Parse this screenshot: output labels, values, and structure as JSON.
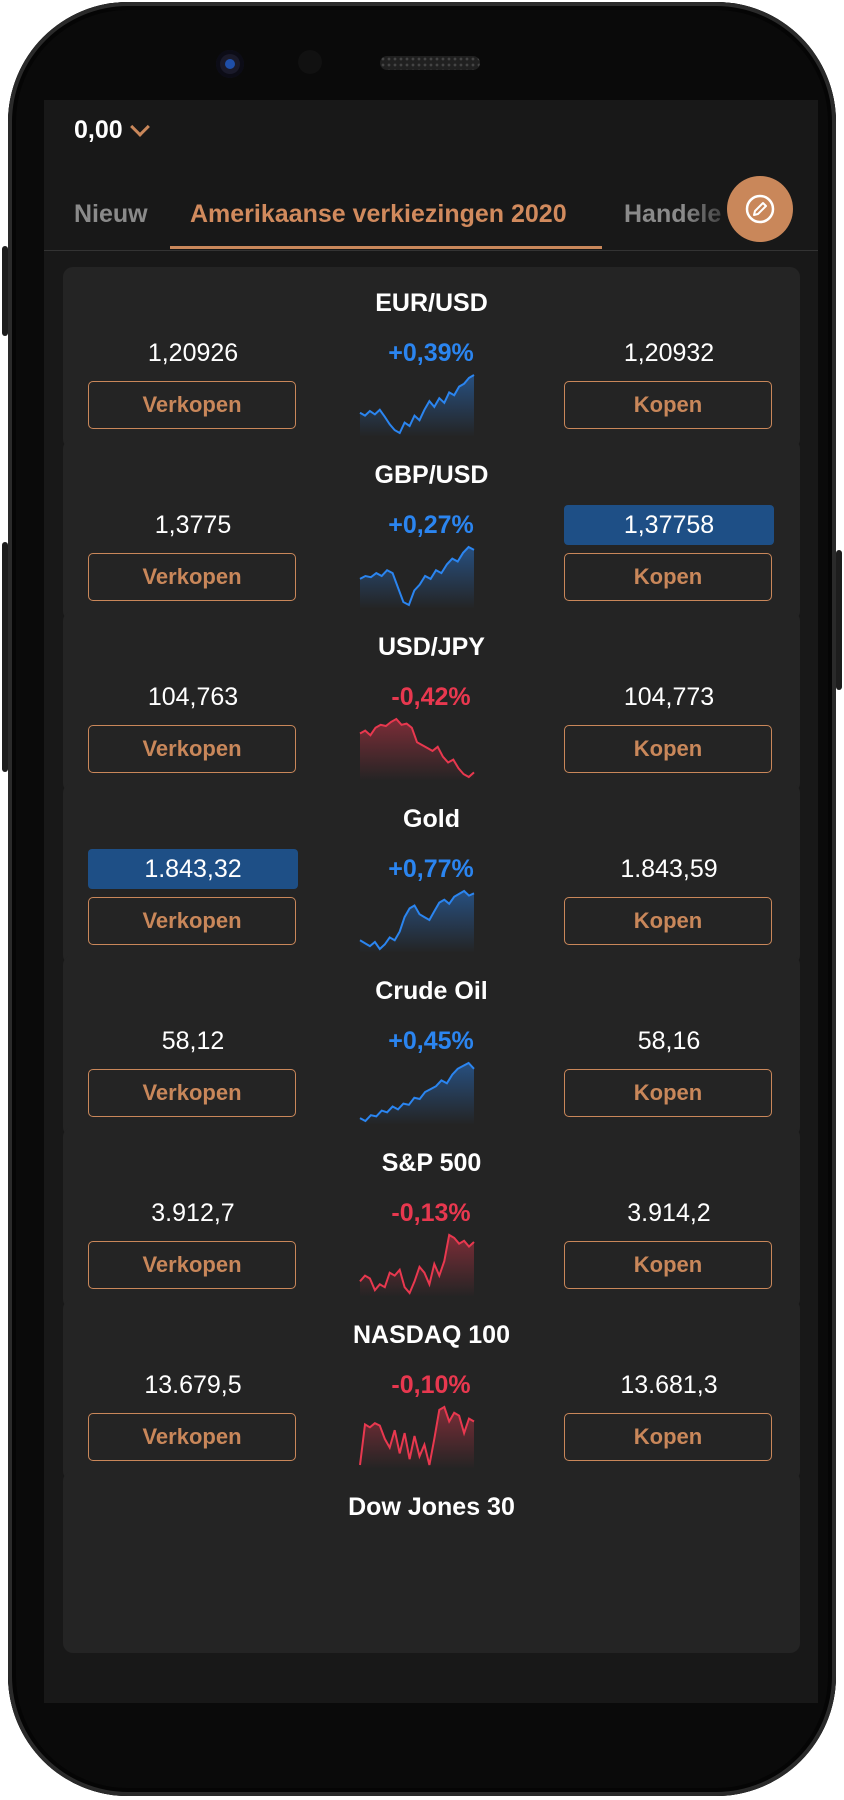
{
  "header": {
    "balance": "0,00"
  },
  "tabs": [
    {
      "label": "Nieuw"
    },
    {
      "label": "Amerikaanse verkiezingen 2020"
    },
    {
      "label": "Handele"
    }
  ],
  "colors": {
    "accent": "#c9875a",
    "up": "#2b85f0",
    "down": "#e8384f",
    "highlight": "#1e4f86"
  },
  "instruments": [
    {
      "name": "EUR/USD",
      "sell": "1,20926",
      "buy": "1,20932",
      "change": "+0,39%",
      "dir": "up",
      "highlight": "",
      "sell_label": "Verkopen",
      "buy_label": "Kopen",
      "spark": [
        0.35,
        0.3,
        0.38,
        0.32,
        0.4,
        0.28,
        0.15,
        0.05,
        0.0,
        0.18,
        0.12,
        0.3,
        0.22,
        0.4,
        0.55,
        0.45,
        0.6,
        0.52,
        0.7,
        0.65,
        0.8,
        0.85,
        0.95,
        1.0
      ]
    },
    {
      "name": "GBP/USD",
      "sell": "1,3775",
      "buy": "1,37758",
      "change": "+0,27%",
      "dir": "up",
      "highlight": "buy",
      "sell_label": "Verkopen",
      "buy_label": "Kopen",
      "spark": [
        0.45,
        0.5,
        0.48,
        0.55,
        0.5,
        0.6,
        0.55,
        0.3,
        0.05,
        0.0,
        0.25,
        0.35,
        0.5,
        0.45,
        0.6,
        0.55,
        0.7,
        0.8,
        0.75,
        0.9,
        1.0,
        0.95
      ]
    },
    {
      "name": "USD/JPY",
      "sell": "104,763",
      "buy": "104,773",
      "change": "-0,42%",
      "dir": "down",
      "highlight": "",
      "sell_label": "Verkopen",
      "buy_label": "Kopen",
      "spark": [
        0.75,
        0.8,
        0.72,
        0.85,
        0.9,
        0.88,
        0.95,
        1.0,
        0.9,
        0.92,
        0.85,
        0.6,
        0.55,
        0.5,
        0.45,
        0.52,
        0.35,
        0.25,
        0.3,
        0.15,
        0.05,
        0.0,
        0.08
      ]
    },
    {
      "name": "Gold",
      "sell": "1.843,32",
      "buy": "1.843,59",
      "change": "+0,77%",
      "dir": "up",
      "highlight": "sell",
      "sell_label": "Verkopen",
      "buy_label": "Kopen",
      "spark": [
        0.15,
        0.1,
        0.05,
        0.12,
        0.0,
        0.08,
        0.2,
        0.15,
        0.3,
        0.55,
        0.7,
        0.75,
        0.6,
        0.55,
        0.5,
        0.65,
        0.8,
        0.85,
        0.78,
        0.9,
        0.95,
        1.0,
        0.92,
        0.96
      ]
    },
    {
      "name": "Crude Oil",
      "sell": "58,12",
      "buy": "58,16",
      "change": "+0,45%",
      "dir": "up",
      "highlight": "",
      "sell_label": "Verkopen",
      "buy_label": "Kopen",
      "spark": [
        0.05,
        0.0,
        0.1,
        0.08,
        0.18,
        0.15,
        0.25,
        0.2,
        0.3,
        0.28,
        0.4,
        0.38,
        0.5,
        0.55,
        0.6,
        0.7,
        0.65,
        0.8,
        0.9,
        0.95,
        1.0,
        0.9
      ]
    },
    {
      "name": "S&P 500",
      "sell": "3.912,7",
      "buy": "3.914,2",
      "change": "-0,13%",
      "dir": "down",
      "highlight": "",
      "sell_label": "Verkopen",
      "buy_label": "Kopen",
      "spark": [
        0.2,
        0.3,
        0.25,
        0.05,
        0.15,
        0.1,
        0.35,
        0.3,
        0.4,
        0.1,
        0.0,
        0.2,
        0.45,
        0.35,
        0.15,
        0.5,
        0.3,
        0.55,
        1.0,
        0.95,
        0.85,
        0.9,
        0.8,
        0.88
      ]
    },
    {
      "name": "NASDAQ 100",
      "sell": "13.679,5",
      "buy": "13.681,3",
      "change": "-0,10%",
      "dir": "down",
      "highlight": "",
      "sell_label": "Verkopen",
      "buy_label": "Kopen",
      "spark": [
        0.0,
        0.7,
        0.65,
        0.72,
        0.68,
        0.45,
        0.3,
        0.6,
        0.2,
        0.55,
        0.1,
        0.5,
        0.15,
        0.35,
        0.0,
        0.45,
        0.95,
        1.0,
        0.75,
        0.9,
        0.85,
        0.55,
        0.8,
        0.75
      ]
    },
    {
      "name": "Dow Jones 30"
    }
  ]
}
